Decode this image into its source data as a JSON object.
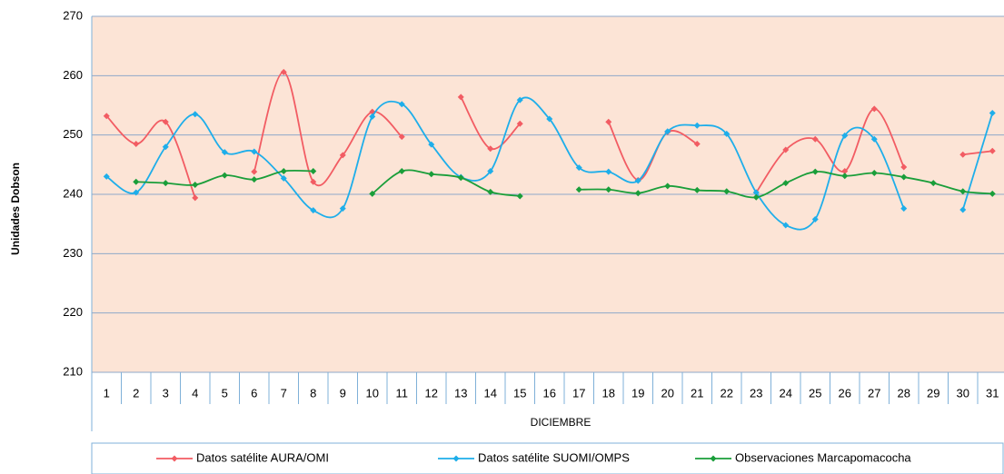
{
  "chart_data": {
    "type": "line",
    "y_label": "Unidades Dobson",
    "x_label": "DICIEMBRE",
    "categories": [
      "1",
      "2",
      "3",
      "4",
      "5",
      "6",
      "7",
      "8",
      "9",
      "10",
      "11",
      "12",
      "13",
      "14",
      "15",
      "16",
      "17",
      "18",
      "19",
      "20",
      "21",
      "22",
      "23",
      "24",
      "25",
      "26",
      "27",
      "28",
      "29",
      "30",
      "31"
    ],
    "series": [
      {
        "name": "Datos satélite AURA/OMI",
        "color": "#f25c63",
        "values": [
          253.2,
          248.5,
          252.2,
          239.4,
          null,
          243.8,
          260.6,
          242.1,
          246.6,
          253.9,
          249.7,
          null,
          256.4,
          247.7,
          251.9,
          null,
          null,
          252.2,
          242.4,
          250.5,
          248.5,
          null,
          240.3,
          247.5,
          249.3,
          243.9,
          254.4,
          244.6,
          null,
          246.7,
          247.3
        ]
      },
      {
        "name": "Datos satélite SUOMI/OMPS",
        "color": "#1eaeea",
        "values": [
          243.0,
          240.3,
          248.0,
          253.5,
          247.1,
          247.2,
          242.7,
          237.3,
          237.6,
          253.1,
          255.2,
          248.4,
          242.9,
          243.9,
          255.9,
          252.7,
          244.5,
          243.8,
          242.3,
          250.6,
          251.6,
          250.2,
          240.3,
          234.8,
          235.8,
          249.9,
          249.3,
          237.6,
          null,
          237.4,
          253.7
        ]
      },
      {
        "name": "Observaciones Marcapomacocha",
        "color": "#1a9e3a",
        "values": [
          null,
          242.1,
          241.9,
          241.6,
          243.2,
          242.5,
          243.9,
          243.9,
          null,
          240.1,
          243.9,
          243.4,
          242.8,
          240.4,
          239.7,
          null,
          240.8,
          240.8,
          240.2,
          241.4,
          240.7,
          240.5,
          239.5,
          241.9,
          243.8,
          243.1,
          243.6,
          242.9,
          241.9,
          240.5,
          240.1
        ]
      }
    ],
    "ylim": [
      210,
      270
    ],
    "yticks": [
      210,
      220,
      230,
      240,
      250,
      260,
      270
    ],
    "grid": true
  }
}
